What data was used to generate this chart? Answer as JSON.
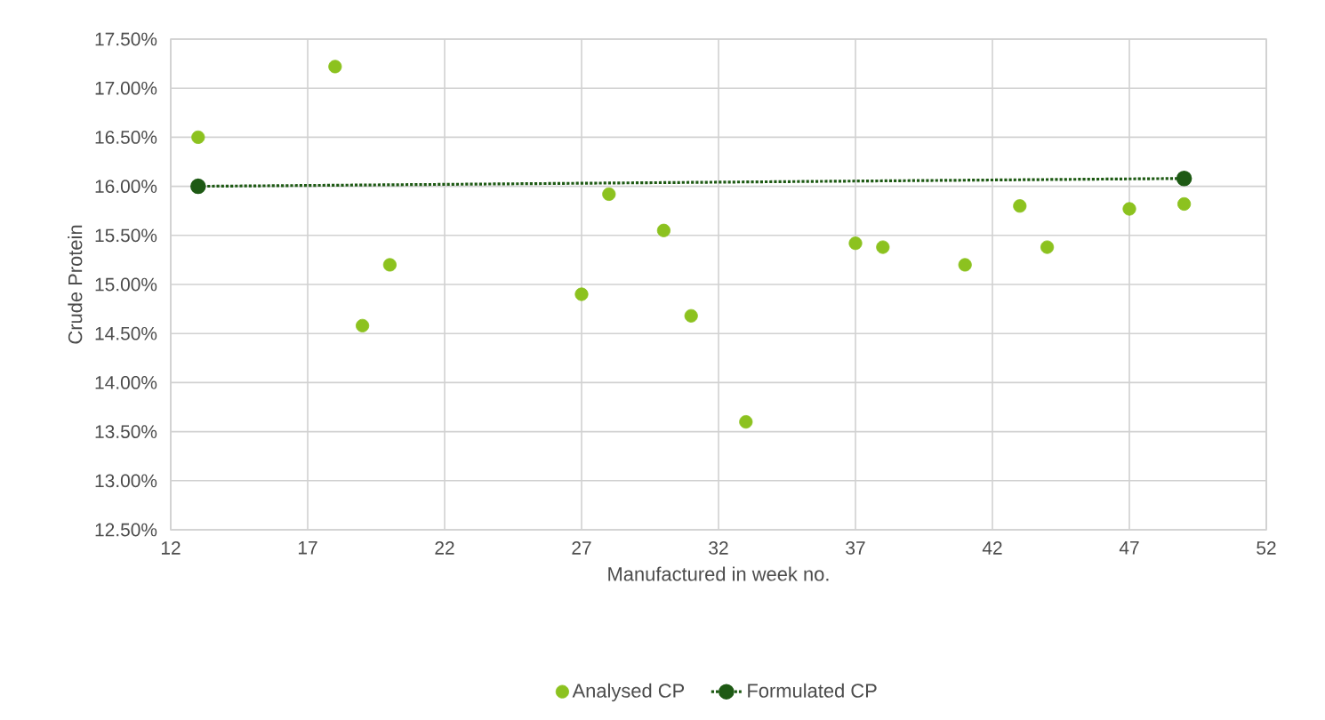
{
  "chart_data": {
    "type": "scatter",
    "xlabel": "Manufactured in week no.",
    "ylabel": "Crude Protein",
    "xlim": [
      12,
      52
    ],
    "xticks": [
      12,
      17,
      22,
      27,
      32,
      37,
      42,
      47,
      52
    ],
    "ylim": [
      12.5,
      17.5
    ],
    "yticks": [
      {
        "value": 12.5,
        "label": "12.50%"
      },
      {
        "value": 13.0,
        "label": "13.00%"
      },
      {
        "value": 13.5,
        "label": "13.50%"
      },
      {
        "value": 14.0,
        "label": "14.00%"
      },
      {
        "value": 14.5,
        "label": "14.50%"
      },
      {
        "value": 15.0,
        "label": "15.00%"
      },
      {
        "value": 15.5,
        "label": "15.50%"
      },
      {
        "value": 16.0,
        "label": "16.00%"
      },
      {
        "value": 16.5,
        "label": "16.50%"
      },
      {
        "value": 17.0,
        "label": "17.00%"
      },
      {
        "value": 17.5,
        "label": "17.50%"
      }
    ],
    "grid": true,
    "legend": "bottom",
    "marker": "circle",
    "series": [
      {
        "name": "Analysed CP",
        "color": "#8cc21f",
        "x": [
          13,
          18,
          19,
          20,
          27,
          28,
          30,
          31,
          33,
          37,
          38,
          41,
          43,
          44,
          47,
          49
        ],
        "values": [
          16.5,
          17.22,
          14.58,
          15.2,
          14.9,
          15.92,
          15.55,
          14.68,
          13.6,
          15.42,
          15.38,
          15.2,
          15.8,
          15.38,
          15.77,
          15.82
        ]
      },
      {
        "name": "Formulated CP",
        "color": "#1e5a14",
        "type": "line",
        "line_style": "dotted",
        "x": [
          13,
          49
        ],
        "values": [
          16.0,
          16.08
        ]
      }
    ]
  }
}
